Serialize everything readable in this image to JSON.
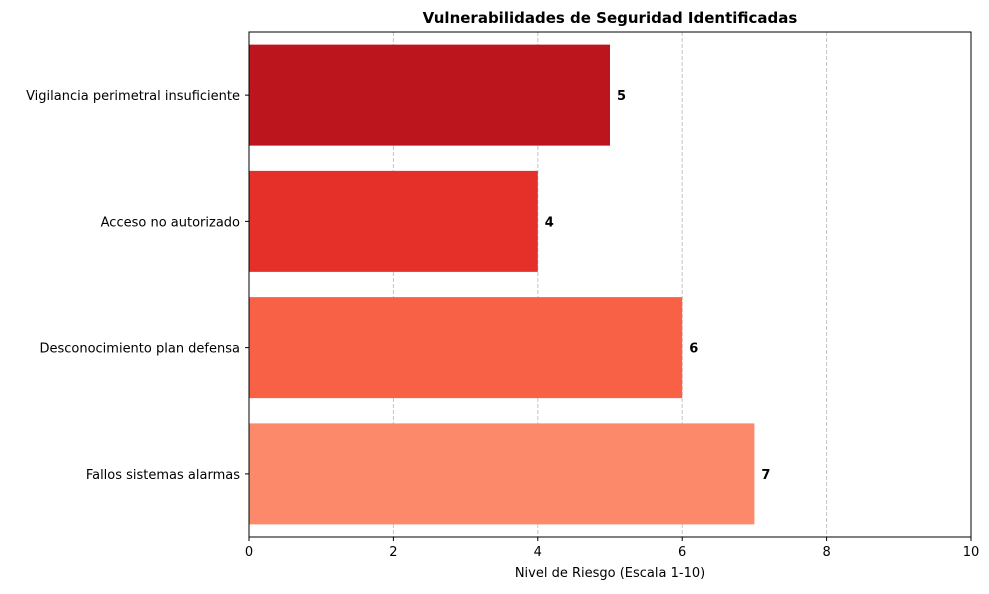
{
  "chart_data": {
    "type": "bar",
    "orientation": "horizontal",
    "title": "Vulnerabilidades de Seguridad Identificadas",
    "xlabel": "Nivel de Riesgo (Escala 1-10)",
    "ylabel": "",
    "xlim": [
      0,
      10
    ],
    "xticks": [
      0,
      2,
      4,
      6,
      8,
      10
    ],
    "grid": "x-dashed",
    "categories": [
      "Vigilancia perimetral insuficiente",
      "Acceso no autorizado",
      "Desconocimiento plan defensa",
      "Fallos sistemas alarmas"
    ],
    "values": [
      5,
      4,
      6,
      7
    ],
    "colors": [
      "#bd151d",
      "#e5302a",
      "#f96146",
      "#fc8a6a"
    ],
    "data_labels": [
      "5",
      "4",
      "6",
      "7"
    ]
  }
}
